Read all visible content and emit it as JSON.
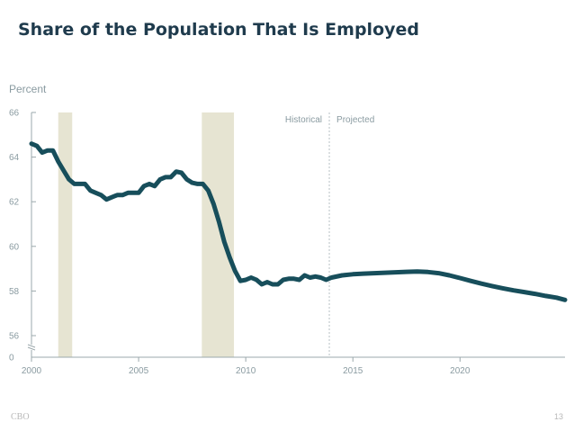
{
  "title": "Share of the Population That Is Employed",
  "footer": {
    "source": "CBO",
    "page_number": "13"
  },
  "colors": {
    "line": "#174e5b",
    "recession_band": "#e6e4d2",
    "axis": "#9ba8ac",
    "tick_label": "#8a9ba1",
    "divider": "#b7c0c4"
  },
  "chart_data": {
    "type": "line",
    "ylabel": "Percent",
    "xlim": [
      2000,
      2024.9
    ],
    "ylim": [
      56,
      66
    ],
    "y_axis_break": true,
    "y_ticks": [
      "66",
      "64",
      "62",
      "60",
      "58",
      "56",
      "0"
    ],
    "x_ticks": [
      "2000",
      "2005",
      "2010",
      "2015",
      "2020"
    ],
    "annotations": {
      "historical": "Historical",
      "projected": "Projected"
    },
    "divider_x": 2013.9,
    "recession_shading": [
      [
        2001.25,
        2001.9
      ],
      [
        2007.95,
        2009.45
      ]
    ],
    "series": [
      {
        "x": [
          2000.0,
          2000.25,
          2000.5,
          2000.75,
          2001.0,
          2001.25,
          2001.5,
          2001.75,
          2002.0,
          2002.25,
          2002.5,
          2002.75,
          2003.0,
          2003.25,
          2003.5,
          2003.75,
          2004.0,
          2004.25,
          2004.5,
          2004.75,
          2005.0,
          2005.25,
          2005.5,
          2005.75,
          2006.0,
          2006.25,
          2006.5,
          2006.75,
          2007.0,
          2007.25,
          2007.5,
          2007.75,
          2008.0,
          2008.25,
          2008.5,
          2008.75,
          2009.0,
          2009.25,
          2009.5,
          2009.75,
          2010.0,
          2010.25,
          2010.5,
          2010.75,
          2011.0,
          2011.25,
          2011.5,
          2011.75,
          2012.0,
          2012.25,
          2012.5,
          2012.75,
          2013.0,
          2013.25,
          2013.5,
          2013.75,
          2014.0,
          2014.5,
          2015.0,
          2015.5,
          2016.0,
          2016.5,
          2017.0,
          2017.5,
          2018.0,
          2018.5,
          2019.0,
          2019.5,
          2020.0,
          2020.5,
          2021.0,
          2021.5,
          2022.0,
          2022.5,
          2023.0,
          2023.5,
          2024.0,
          2024.5,
          2024.9
        ],
        "y": [
          64.6,
          64.5,
          64.2,
          64.3,
          64.3,
          63.8,
          63.4,
          63.0,
          62.8,
          62.8,
          62.8,
          62.5,
          62.4,
          62.3,
          62.1,
          62.2,
          62.3,
          62.3,
          62.4,
          62.4,
          62.4,
          62.7,
          62.8,
          62.7,
          63.0,
          63.1,
          63.1,
          63.35,
          63.3,
          63.0,
          62.85,
          62.8,
          62.8,
          62.5,
          61.9,
          61.1,
          60.2,
          59.5,
          58.9,
          58.45,
          58.5,
          58.6,
          58.5,
          58.3,
          58.4,
          58.3,
          58.3,
          58.5,
          58.55,
          58.55,
          58.5,
          58.7,
          58.6,
          58.65,
          58.6,
          58.5,
          58.6,
          58.7,
          58.75,
          58.78,
          58.8,
          58.82,
          58.84,
          58.86,
          58.87,
          58.85,
          58.8,
          58.7,
          58.58,
          58.45,
          58.33,
          58.22,
          58.12,
          58.03,
          57.95,
          57.87,
          57.78,
          57.7,
          57.6
        ]
      }
    ]
  }
}
